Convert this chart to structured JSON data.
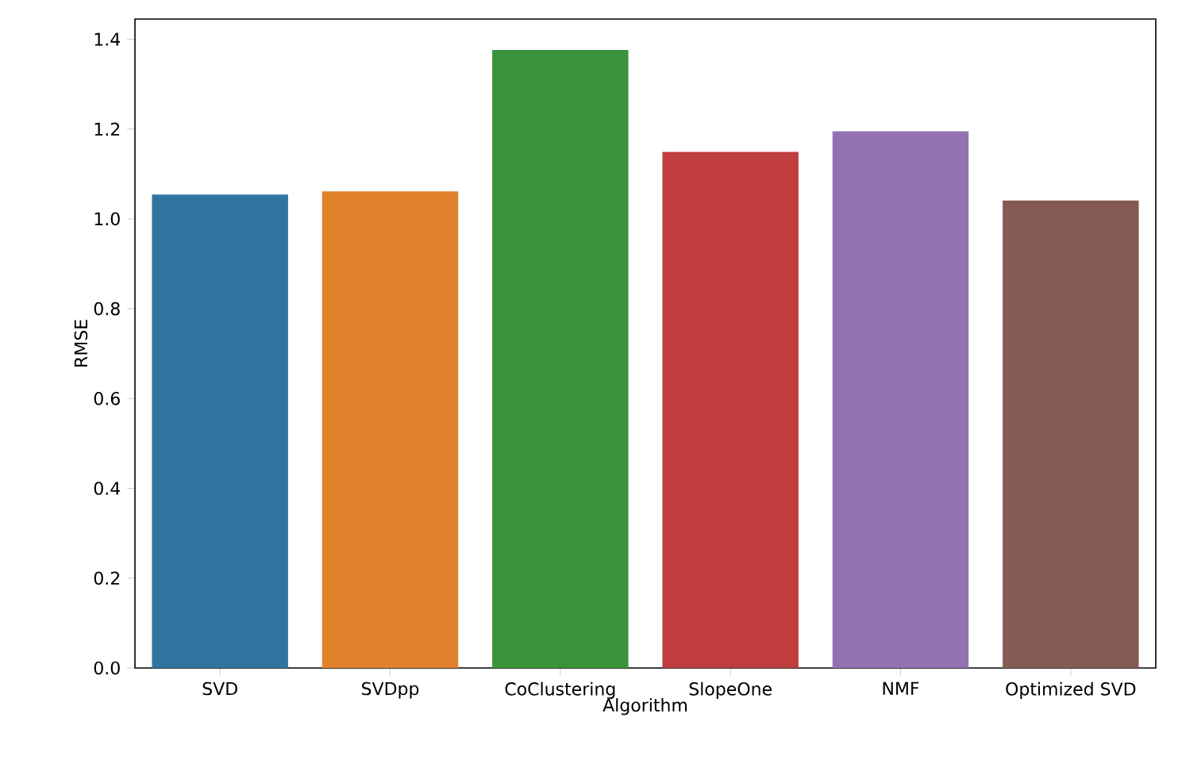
{
  "chart_data": {
    "type": "bar",
    "xlabel": "Algorithm",
    "ylabel": "RMSE",
    "categories": [
      "SVD",
      "SVDpp",
      "CoClustering",
      "SlopeOne",
      "NMF",
      "Optimized SVD"
    ],
    "values": [
      1.054,
      1.061,
      1.376,
      1.149,
      1.195,
      1.041
    ],
    "colors": [
      "#3274a1",
      "#e1812c",
      "#3a923a",
      "#c03d3e",
      "#9372b2",
      "#845b53"
    ],
    "ylim": [
      0,
      1.445
    ],
    "yticks": [
      {
        "value": 0,
        "label": "0.0"
      },
      0.2,
      0.4,
      0.6,
      0.8,
      {
        "value": 1,
        "label": "1.0"
      },
      1.2,
      1.4
    ],
    "grid": false
  }
}
